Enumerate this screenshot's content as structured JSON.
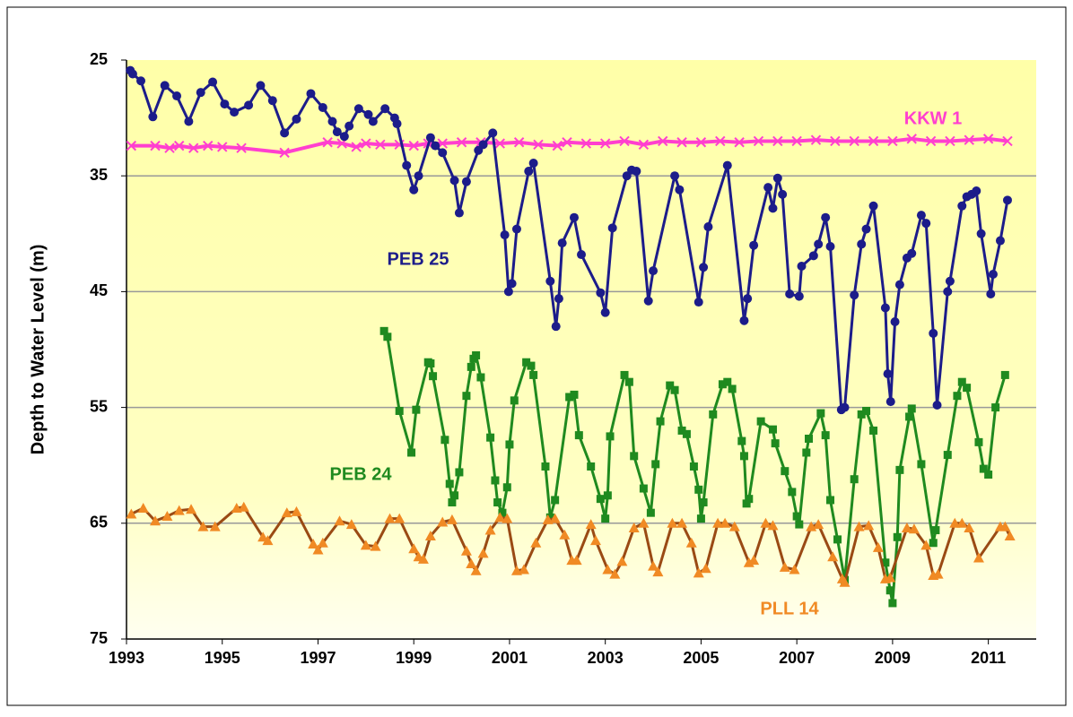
{
  "chart_data": {
    "type": "line",
    "y_label": "Depth to Water Level (m)",
    "xlim": [
      1993,
      2012
    ],
    "xticks": [
      1993,
      1995,
      1997,
      1999,
      2001,
      2003,
      2005,
      2007,
      2009,
      2011
    ],
    "ylim": [
      25,
      75
    ],
    "yticks": [
      25,
      35,
      45,
      55,
      65,
      75
    ],
    "y_reversed": true,
    "grid": true,
    "series": [
      {
        "name": "KKW 1",
        "color": "#ff3fcf",
        "marker": "x",
        "x": [
          1993.1,
          1993.6,
          1993.9,
          1994.1,
          1994.4,
          1994.7,
          1995.0,
          1995.4,
          1996.3,
          1997.2,
          1997.5,
          1997.8,
          1998.0,
          1998.3,
          1998.7,
          1999.0,
          1999.3,
          1999.6,
          2000.0,
          2000.4,
          2000.8,
          2001.2,
          2001.6,
          2002.0,
          2002.2,
          2002.6,
          2003.0,
          2003.4,
          2003.8,
          2004.2,
          2004.6,
          2005.0,
          2005.4,
          2005.8,
          2006.2,
          2006.6,
          2007.0,
          2007.4,
          2007.8,
          2008.2,
          2008.6,
          2009.0,
          2009.4,
          2009.8,
          2010.2,
          2010.6,
          2011.0,
          2011.4
        ],
        "values": [
          32.4,
          32.4,
          32.6,
          32.4,
          32.6,
          32.4,
          32.5,
          32.6,
          33.0,
          32.1,
          32.2,
          32.5,
          32.2,
          32.3,
          32.3,
          32.4,
          32.2,
          32.2,
          32.1,
          32.1,
          32.2,
          32.1,
          32.3,
          32.4,
          32.1,
          32.2,
          32.2,
          32.0,
          32.3,
          32.0,
          32.1,
          32.1,
          32.0,
          32.1,
          32.0,
          32.0,
          32.0,
          31.9,
          32.0,
          32.0,
          32.0,
          32.0,
          31.8,
          32.0,
          32.0,
          31.9,
          31.8,
          32.0
        ]
      },
      {
        "name": "PEB 25",
        "color": "#1c1c8a",
        "marker": "circle",
        "x": [
          1993.08,
          1993.13,
          1993.3,
          1993.55,
          1993.8,
          1994.05,
          1994.3,
          1994.55,
          1994.8,
          1995.05,
          1995.25,
          1995.55,
          1995.8,
          1996.05,
          1996.3,
          1996.55,
          1996.85,
          1997.1,
          1997.3,
          1997.4,
          1997.55,
          1997.65,
          1997.85,
          1998.05,
          1998.15,
          1998.4,
          1998.6,
          1998.65,
          1998.85,
          1999.0,
          1999.1,
          1999.35,
          1999.45,
          1999.6,
          1999.85,
          1999.95,
          2000.1,
          2000.35,
          2000.45,
          2000.65,
          2000.9,
          2000.98,
          2001.05,
          2001.15,
          2001.4,
          2001.5,
          2001.85,
          2001.97,
          2002.03,
          2002.1,
          2002.35,
          2002.5,
          2002.9,
          2003.0,
          2003.15,
          2003.45,
          2003.55,
          2003.65,
          2003.9,
          2004.0,
          2004.45,
          2004.55,
          2004.95,
          2005.05,
          2005.15,
          2005.55,
          2005.9,
          2005.97,
          2006.1,
          2006.4,
          2006.5,
          2006.6,
          2006.7,
          2006.85,
          2007.05,
          2007.1,
          2007.35,
          2007.45,
          2007.6,
          2007.7,
          2007.93,
          2008.0,
          2008.2,
          2008.35,
          2008.45,
          2008.6,
          2008.85,
          2008.9,
          2008.96,
          2009.05,
          2009.15,
          2009.3,
          2009.4,
          2009.6,
          2009.7,
          2009.85,
          2009.93,
          2010.15,
          2010.2,
          2010.45,
          2010.55,
          2010.65,
          2010.75,
          2010.85,
          2011.05,
          2011.1,
          2011.25,
          2011.4
        ],
        "values": [
          25.9,
          26.2,
          26.8,
          29.9,
          27.2,
          28.1,
          30.3,
          27.8,
          26.9,
          28.8,
          29.5,
          28.9,
          27.2,
          28.5,
          31.3,
          30.1,
          27.9,
          29.1,
          30.3,
          31.2,
          31.6,
          30.7,
          29.2,
          29.7,
          30.3,
          29.2,
          30.0,
          30.5,
          34.1,
          36.2,
          35.0,
          31.7,
          32.4,
          33.0,
          35.4,
          38.2,
          35.5,
          32.8,
          32.3,
          31.3,
          40.1,
          45.0,
          44.3,
          39.6,
          34.6,
          33.9,
          44.1,
          48.0,
          45.6,
          40.8,
          38.6,
          41.8,
          45.1,
          46.8,
          39.5,
          35.0,
          34.5,
          34.6,
          45.8,
          43.2,
          35.0,
          36.2,
          45.9,
          42.9,
          39.4,
          34.1,
          47.5,
          45.6,
          41.0,
          36.0,
          37.8,
          35.2,
          36.6,
          45.2,
          45.4,
          42.8,
          41.9,
          40.9,
          38.6,
          41.1,
          55.2,
          55.0,
          45.3,
          40.9,
          39.6,
          37.6,
          46.4,
          52.1,
          54.5,
          47.6,
          44.4,
          42.1,
          41.7,
          38.4,
          39.1,
          48.6,
          54.8,
          45.0,
          44.1,
          37.6,
          36.8,
          36.6,
          36.3,
          40.0,
          45.2,
          43.5,
          40.6,
          37.1
        ]
      },
      {
        "name": "PEB 24",
        "color": "#1f8a1f",
        "marker": "square",
        "x": [
          1998.38,
          1998.45,
          1998.7,
          1998.95,
          1999.05,
          1999.3,
          1999.35,
          1999.4,
          1999.65,
          1999.75,
          1999.8,
          1999.85,
          1999.95,
          2000.1,
          2000.2,
          2000.25,
          2000.3,
          2000.4,
          2000.6,
          2000.7,
          2000.75,
          2000.85,
          2000.95,
          2001.0,
          2001.1,
          2001.35,
          2001.45,
          2001.5,
          2001.75,
          2001.85,
          2001.95,
          2002.25,
          2002.35,
          2002.45,
          2002.7,
          2002.9,
          2003.0,
          2003.05,
          2003.1,
          2003.4,
          2003.5,
          2003.6,
          2003.8,
          2003.95,
          2004.05,
          2004.15,
          2004.35,
          2004.45,
          2004.6,
          2004.7,
          2004.85,
          2004.95,
          2005.0,
          2005.05,
          2005.25,
          2005.45,
          2005.55,
          2005.65,
          2005.85,
          2005.9,
          2005.95,
          2006.0,
          2006.25,
          2006.5,
          2006.55,
          2006.75,
          2006.9,
          2007.0,
          2007.05,
          2007.2,
          2007.25,
          2007.5,
          2007.6,
          2007.7,
          2007.85,
          2008.0,
          2008.2,
          2008.35,
          2008.45,
          2008.6,
          2008.85,
          2008.95,
          2009.0,
          2009.1,
          2009.15,
          2009.35,
          2009.4,
          2009.6,
          2009.85,
          2009.9,
          2010.15,
          2010.35,
          2010.45,
          2010.55,
          2010.8,
          2010.9,
          2011.0,
          2011.15,
          2011.35
        ],
        "values": [
          48.4,
          48.9,
          55.3,
          58.9,
          55.2,
          51.1,
          51.2,
          52.3,
          57.8,
          61.6,
          63.2,
          62.6,
          60.6,
          54.0,
          51.5,
          50.8,
          50.5,
          52.4,
          57.6,
          61.3,
          63.2,
          64.1,
          61.9,
          58.2,
          54.4,
          51.1,
          51.4,
          52.2,
          60.1,
          64.5,
          63.0,
          54.1,
          53.9,
          57.4,
          60.1,
          62.9,
          64.6,
          62.6,
          57.5,
          52.2,
          52.8,
          59.2,
          62.0,
          64.1,
          59.9,
          56.2,
          53.1,
          53.5,
          57.0,
          57.3,
          60.1,
          62.1,
          64.6,
          63.2,
          55.6,
          53.0,
          52.8,
          53.4,
          57.9,
          59.2,
          63.3,
          62.9,
          56.2,
          56.9,
          58.1,
          60.5,
          62.3,
          64.4,
          65.1,
          58.9,
          57.7,
          55.5,
          57.4,
          63.0,
          66.4,
          69.9,
          61.2,
          55.6,
          55.3,
          57.0,
          68.4,
          70.8,
          71.9,
          66.2,
          60.4,
          55.8,
          55.1,
          59.9,
          66.7,
          65.6,
          59.1,
          54.0,
          52.8,
          53.3,
          58.0,
          60.3,
          60.8,
          55.0,
          52.2
        ]
      },
      {
        "name": "PLL 14",
        "color": "#9a4a14",
        "marker_color": "#f08a24",
        "marker": "triangle",
        "x": [
          1993.1,
          1993.35,
          1993.6,
          1993.85,
          1994.1,
          1994.35,
          1994.6,
          1994.85,
          1995.3,
          1995.45,
          1995.85,
          1995.95,
          1996.35,
          1996.55,
          1996.9,
          1997.0,
          1997.1,
          1997.45,
          1997.7,
          1998.0,
          1998.2,
          1998.5,
          1998.7,
          1999.0,
          1999.1,
          1999.2,
          1999.35,
          1999.6,
          1999.8,
          2000.1,
          2000.2,
          2000.3,
          2000.45,
          2000.6,
          2000.8,
          2000.95,
          2001.15,
          2001.3,
          2001.55,
          2001.8,
          2001.95,
          2002.15,
          2002.3,
          2002.4,
          2002.7,
          2002.8,
          2003.05,
          2003.2,
          2003.35,
          2003.6,
          2003.8,
          2004.0,
          2004.1,
          2004.4,
          2004.6,
          2004.8,
          2004.95,
          2005.1,
          2005.35,
          2005.5,
          2005.7,
          2006.0,
          2006.1,
          2006.35,
          2006.5,
          2006.75,
          2006.95,
          2007.3,
          2007.45,
          2007.75,
          2007.95,
          2008.0,
          2008.3,
          2008.5,
          2008.7,
          2008.85,
          2008.95,
          2009.3,
          2009.45,
          2009.7,
          2009.85,
          2009.95,
          2010.3,
          2010.45,
          2010.6,
          2010.8,
          2011.25,
          2011.35,
          2011.45
        ],
        "values": [
          64.2,
          63.7,
          64.8,
          64.4,
          63.9,
          63.8,
          65.3,
          65.3,
          63.7,
          63.6,
          66.2,
          66.5,
          64.1,
          64.0,
          66.8,
          67.3,
          66.7,
          64.8,
          65.1,
          66.9,
          67.0,
          64.6,
          64.6,
          67.2,
          67.9,
          68.1,
          66.1,
          64.9,
          64.7,
          67.4,
          68.5,
          69.1,
          67.6,
          65.6,
          64.5,
          64.6,
          69.1,
          69.0,
          66.7,
          64.7,
          64.6,
          66.0,
          68.2,
          68.2,
          65.1,
          66.5,
          69.0,
          69.4,
          68.3,
          65.4,
          65.0,
          68.7,
          69.2,
          65.0,
          65.0,
          66.7,
          69.3,
          68.9,
          65.0,
          65.0,
          65.3,
          68.4,
          68.2,
          65.0,
          65.2,
          68.8,
          69.0,
          65.3,
          65.1,
          67.9,
          69.8,
          70.1,
          65.3,
          65.2,
          67.1,
          69.8,
          69.7,
          65.4,
          65.5,
          66.9,
          69.5,
          69.4,
          65.0,
          65.0,
          65.4,
          68.0,
          65.3,
          65.3,
          66.1
        ]
      }
    ]
  }
}
